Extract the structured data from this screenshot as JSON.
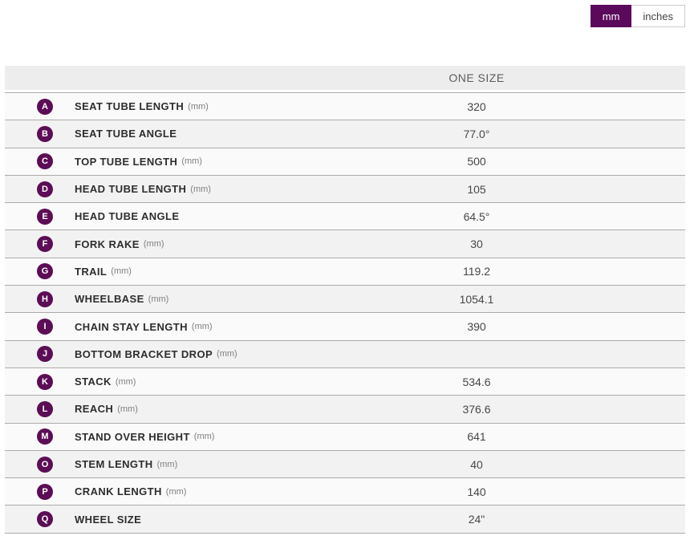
{
  "unit_toggle": {
    "mm_label": "mm",
    "inches_label": "inches",
    "selected": "mm"
  },
  "table": {
    "size_header": "ONE SIZE",
    "rows": [
      {
        "letter": "A",
        "label": "SEAT TUBE LENGTH",
        "unit": "(mm)",
        "value": "320"
      },
      {
        "letter": "B",
        "label": "SEAT TUBE ANGLE",
        "unit": "",
        "value": "77.0°"
      },
      {
        "letter": "C",
        "label": "TOP TUBE LENGTH",
        "unit": "(mm)",
        "value": "500"
      },
      {
        "letter": "D",
        "label": "HEAD TUBE LENGTH",
        "unit": "(mm)",
        "value": "105"
      },
      {
        "letter": "E",
        "label": "HEAD TUBE ANGLE",
        "unit": "",
        "value": "64.5°"
      },
      {
        "letter": "F",
        "label": "FORK RAKE",
        "unit": "(mm)",
        "value": "30"
      },
      {
        "letter": "G",
        "label": "TRAIL",
        "unit": "(mm)",
        "value": "119.2"
      },
      {
        "letter": "H",
        "label": "WHEELBASE",
        "unit": "(mm)",
        "value": "1054.1"
      },
      {
        "letter": "I",
        "label": "CHAIN STAY LENGTH",
        "unit": "(mm)",
        "value": "390"
      },
      {
        "letter": "J",
        "label": "BOTTOM BRACKET DROP",
        "unit": "(mm)",
        "value": ""
      },
      {
        "letter": "K",
        "label": "STACK",
        "unit": "(mm)",
        "value": "534.6"
      },
      {
        "letter": "L",
        "label": "REACH",
        "unit": "(mm)",
        "value": "376.6"
      },
      {
        "letter": "M",
        "label": "STAND OVER HEIGHT",
        "unit": "(mm)",
        "value": "641"
      },
      {
        "letter": "O",
        "label": "STEM LENGTH",
        "unit": "(mm)",
        "value": "40"
      },
      {
        "letter": "P",
        "label": "CRANK LENGTH",
        "unit": "(mm)",
        "value": "140"
      },
      {
        "letter": "Q",
        "label": "WHEEL SIZE",
        "unit": "",
        "value": "24\""
      }
    ]
  },
  "colors": {
    "brand_purple": "#5b0d55",
    "header_bg": "#ededed",
    "row_odd_bg": "#fafafa",
    "row_even_bg": "#f2f2f2",
    "row_border": "#ababab"
  }
}
